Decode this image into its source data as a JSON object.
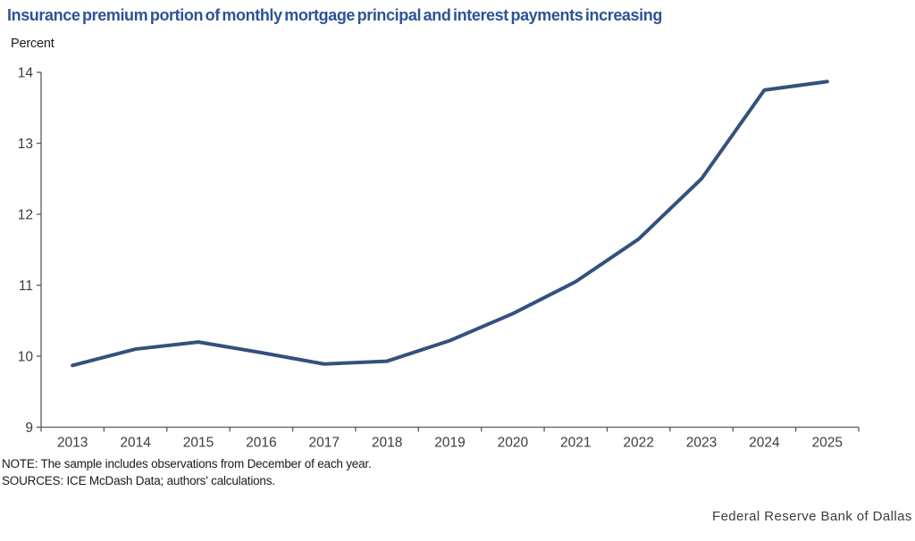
{
  "title": "Insurance premium portion of monthly mortgage principal and interest payments increasing",
  "axis_unit_label": "Percent",
  "notes": {
    "note": "NOTE: The sample includes observations from December of each year.",
    "sources": "SOURCES: ICE McDash Data; authors' calculations."
  },
  "footer": {
    "org": "Federal Reserve Bank of Dallas"
  },
  "colors": {
    "title": "#2e5395",
    "line": "#33517d",
    "axis": "#595959",
    "tick_label": "#3d3d3d"
  },
  "chart_data": {
    "type": "line",
    "title": "Insurance premium portion of monthly mortgage principal and interest payments increasing",
    "xlabel": "",
    "ylabel": "Percent",
    "categories": [
      "2013",
      "2014",
      "2015",
      "2016",
      "2017",
      "2018",
      "2019",
      "2020",
      "2021",
      "2022",
      "2023",
      "2024",
      "2025"
    ],
    "values": [
      9.87,
      10.1,
      10.2,
      10.05,
      9.89,
      9.93,
      10.22,
      10.6,
      11.05,
      11.65,
      12.5,
      13.75,
      13.87
    ],
    "ylim": [
      9,
      14
    ],
    "yticks": [
      9,
      10,
      11,
      12,
      13,
      14
    ],
    "grid": false,
    "legend_position": "none",
    "tick_style": "ticks outside, category labels centered between boundary ticks"
  }
}
